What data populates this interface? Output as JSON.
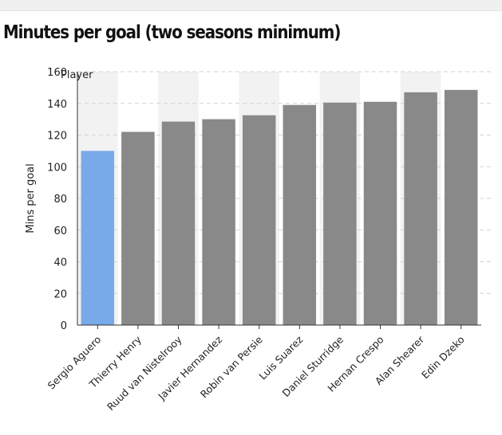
{
  "chart_data": {
    "type": "bar",
    "title": "Minutes per goal (two seasons minimum)",
    "ylabel": "Mins per goal",
    "xlabel": "",
    "legend_label": "Player",
    "categories": [
      "Sergio Aguero",
      "Thierry Henry",
      "Ruud van Nistelrooy",
      "Javier Hernandez",
      "Robin van Persie",
      "Luis Suarez",
      "Daniel Sturridge",
      "Hernan Crespo",
      "Alan Shearer",
      "Edin Dzeko"
    ],
    "values": [
      110,
      122,
      128.5,
      130,
      132.5,
      139,
      140.5,
      141,
      147,
      148.5
    ],
    "highlight_index": 0,
    "ylim": [
      0,
      160
    ],
    "yticks": [
      "0",
      "20",
      "40",
      "60",
      "80",
      "100",
      "120",
      "140",
      "160"
    ],
    "grid": true,
    "colors": {
      "highlight": "#78a9e8",
      "default": "#898989",
      "band": "#f2f2f2"
    }
  }
}
